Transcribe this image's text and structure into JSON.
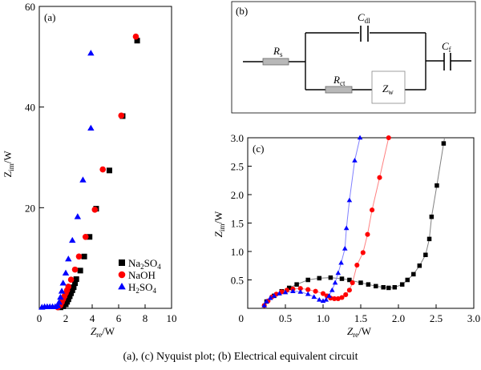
{
  "caption": "(a), (c) Nyquist plot; (b) Electrical equivalent circuit",
  "chart_data": [
    {
      "type": "scatter",
      "panel_label": "(a)",
      "xlabel": "Zre/W",
      "ylabel": "Zim/W",
      "xlim": [
        0,
        10
      ],
      "ylim": [
        0,
        60
      ],
      "xticks": [
        0,
        2,
        4,
        6,
        8,
        10
      ],
      "yticks": [
        20,
        40,
        60
      ],
      "grid": false,
      "legend": "bottom-right",
      "series": [
        {
          "name": "Na2SO4",
          "marker": "square",
          "color": "#000000",
          "x": [
            1.6,
            1.8,
            2.0,
            2.1,
            2.2,
            2.3,
            2.4,
            2.5,
            2.6,
            2.7,
            2.8,
            3.1,
            3.4,
            3.8,
            4.3,
            5.3,
            6.3,
            7.4
          ],
          "y": [
            0.2,
            0.4,
            0.8,
            1.3,
            1.8,
            2.4,
            3.0,
            3.6,
            4.2,
            5.0,
            5.8,
            7.5,
            10.3,
            14.2,
            19.8,
            27.4,
            38.2,
            53.2
          ]
        },
        {
          "name": "NaOH",
          "marker": "circle",
          "color": "#ff0000",
          "x": [
            1.4,
            1.6,
            1.7,
            1.8,
            1.9,
            2.0,
            2.1,
            2.2,
            2.4,
            2.7,
            3.0,
            3.5,
            4.2,
            4.8,
            6.2,
            7.3
          ],
          "y": [
            0.2,
            0.6,
            1.2,
            1.8,
            2.4,
            3.0,
            3.6,
            4.3,
            5.7,
            7.7,
            10.3,
            14.2,
            19.6,
            27.6,
            38.3,
            54.0
          ],
          "y_note": "approx"
        },
        {
          "name": "H2SO4",
          "marker": "triangle",
          "color": "#0000ff",
          "x": [
            0.2,
            0.4,
            0.6,
            0.8,
            1.0,
            1.2,
            1.4,
            1.5,
            1.6,
            1.7,
            1.8,
            2.0,
            2.2,
            2.5,
            2.9,
            3.3,
            3.9
          ],
          "y": [
            0.2,
            0.3,
            0.3,
            0.3,
            0.3,
            0.3,
            0.5,
            1.2,
            2.2,
            3.4,
            5.0,
            7.0,
            9.8,
            13.5,
            18.2,
            25.5,
            35.8
          ],
          "y_note": "approx"
        },
        {
          "name": "H2SO4_top",
          "marker": "triangle",
          "color": "#0000ff",
          "x": [
            3.9
          ],
          "y": [
            50.7
          ],
          "legend": false
        }
      ]
    },
    {
      "type": "diagram",
      "panel_label": "(b)",
      "components": [
        "Rs",
        "Cdl",
        "Rct",
        "Zw",
        "Cf"
      ],
      "labels": {
        "Rs": [
          "R",
          "s"
        ],
        "Cdl": [
          "C",
          "dl"
        ],
        "Rct": [
          "R",
          "ct"
        ],
        "Zw": [
          "Z",
          "w"
        ],
        "Cf": [
          "C",
          "f"
        ]
      }
    },
    {
      "type": "scatter",
      "panel_label": "(c)",
      "xlabel": "Zre/W",
      "ylabel": "Zim/W",
      "xlim": [
        0,
        3.0
      ],
      "ylim": [
        0,
        3.0
      ],
      "xticks": [
        0.5,
        1.0,
        1.5,
        2.0,
        2.5,
        3.0
      ],
      "yticks": [
        0.5,
        1.0,
        1.5,
        2.0,
        2.5,
        3.0
      ],
      "origin_label": "0",
      "grid": false,
      "fit_lines": true,
      "series": [
        {
          "name": "Na2SO4",
          "marker": "square",
          "color": "#000000",
          "line_color": "#808080",
          "x": [
            0.25,
            0.35,
            0.45,
            0.55,
            0.65,
            0.8,
            0.95,
            1.1,
            1.25,
            1.35,
            1.5,
            1.6,
            1.7,
            1.8,
            1.87,
            1.95,
            2.05,
            2.12,
            2.2,
            2.28,
            2.36,
            2.41,
            2.44,
            2.51,
            2.6
          ],
          "y": [
            0.12,
            0.22,
            0.3,
            0.36,
            0.42,
            0.5,
            0.53,
            0.54,
            0.52,
            0.5,
            0.45,
            0.42,
            0.39,
            0.37,
            0.36,
            0.37,
            0.42,
            0.5,
            0.6,
            0.75,
            0.94,
            1.22,
            1.61,
            2.16,
            2.9
          ]
        },
        {
          "name": "NaOH",
          "marker": "circle",
          "color": "#ff0000",
          "line_color": "#ff8080",
          "x": [
            0.22,
            0.27,
            0.32,
            0.38,
            0.45,
            0.52,
            0.6,
            0.7,
            0.8,
            0.9,
            1.0,
            1.05,
            1.1,
            1.15,
            1.2,
            1.25,
            1.3,
            1.35,
            1.39,
            1.45,
            1.53,
            1.59,
            1.65,
            1.75,
            1.87
          ],
          "y": [
            0.05,
            0.13,
            0.2,
            0.25,
            0.29,
            0.32,
            0.34,
            0.35,
            0.33,
            0.3,
            0.26,
            0.22,
            0.18,
            0.17,
            0.17,
            0.19,
            0.24,
            0.32,
            0.45,
            0.76,
            0.98,
            1.3,
            1.73,
            2.3,
            3.0
          ]
        },
        {
          "name": "H2SO4",
          "marker": "triangle",
          "color": "#0000ff",
          "line_color": "#8080ff",
          "x": [
            0.22,
            0.25,
            0.3,
            0.35,
            0.42,
            0.5,
            0.6,
            0.7,
            0.8,
            0.88,
            0.95,
            1.0,
            1.04,
            1.08,
            1.12,
            1.16,
            1.2,
            1.24,
            1.29,
            1.31,
            1.35,
            1.42,
            1.49
          ],
          "y": [
            0.05,
            0.12,
            0.18,
            0.22,
            0.26,
            0.28,
            0.3,
            0.29,
            0.25,
            0.2,
            0.15,
            0.13,
            0.15,
            0.22,
            0.32,
            0.45,
            0.62,
            0.8,
            1.05,
            1.41,
            1.9,
            2.6,
            3.0
          ]
        }
      ]
    }
  ]
}
